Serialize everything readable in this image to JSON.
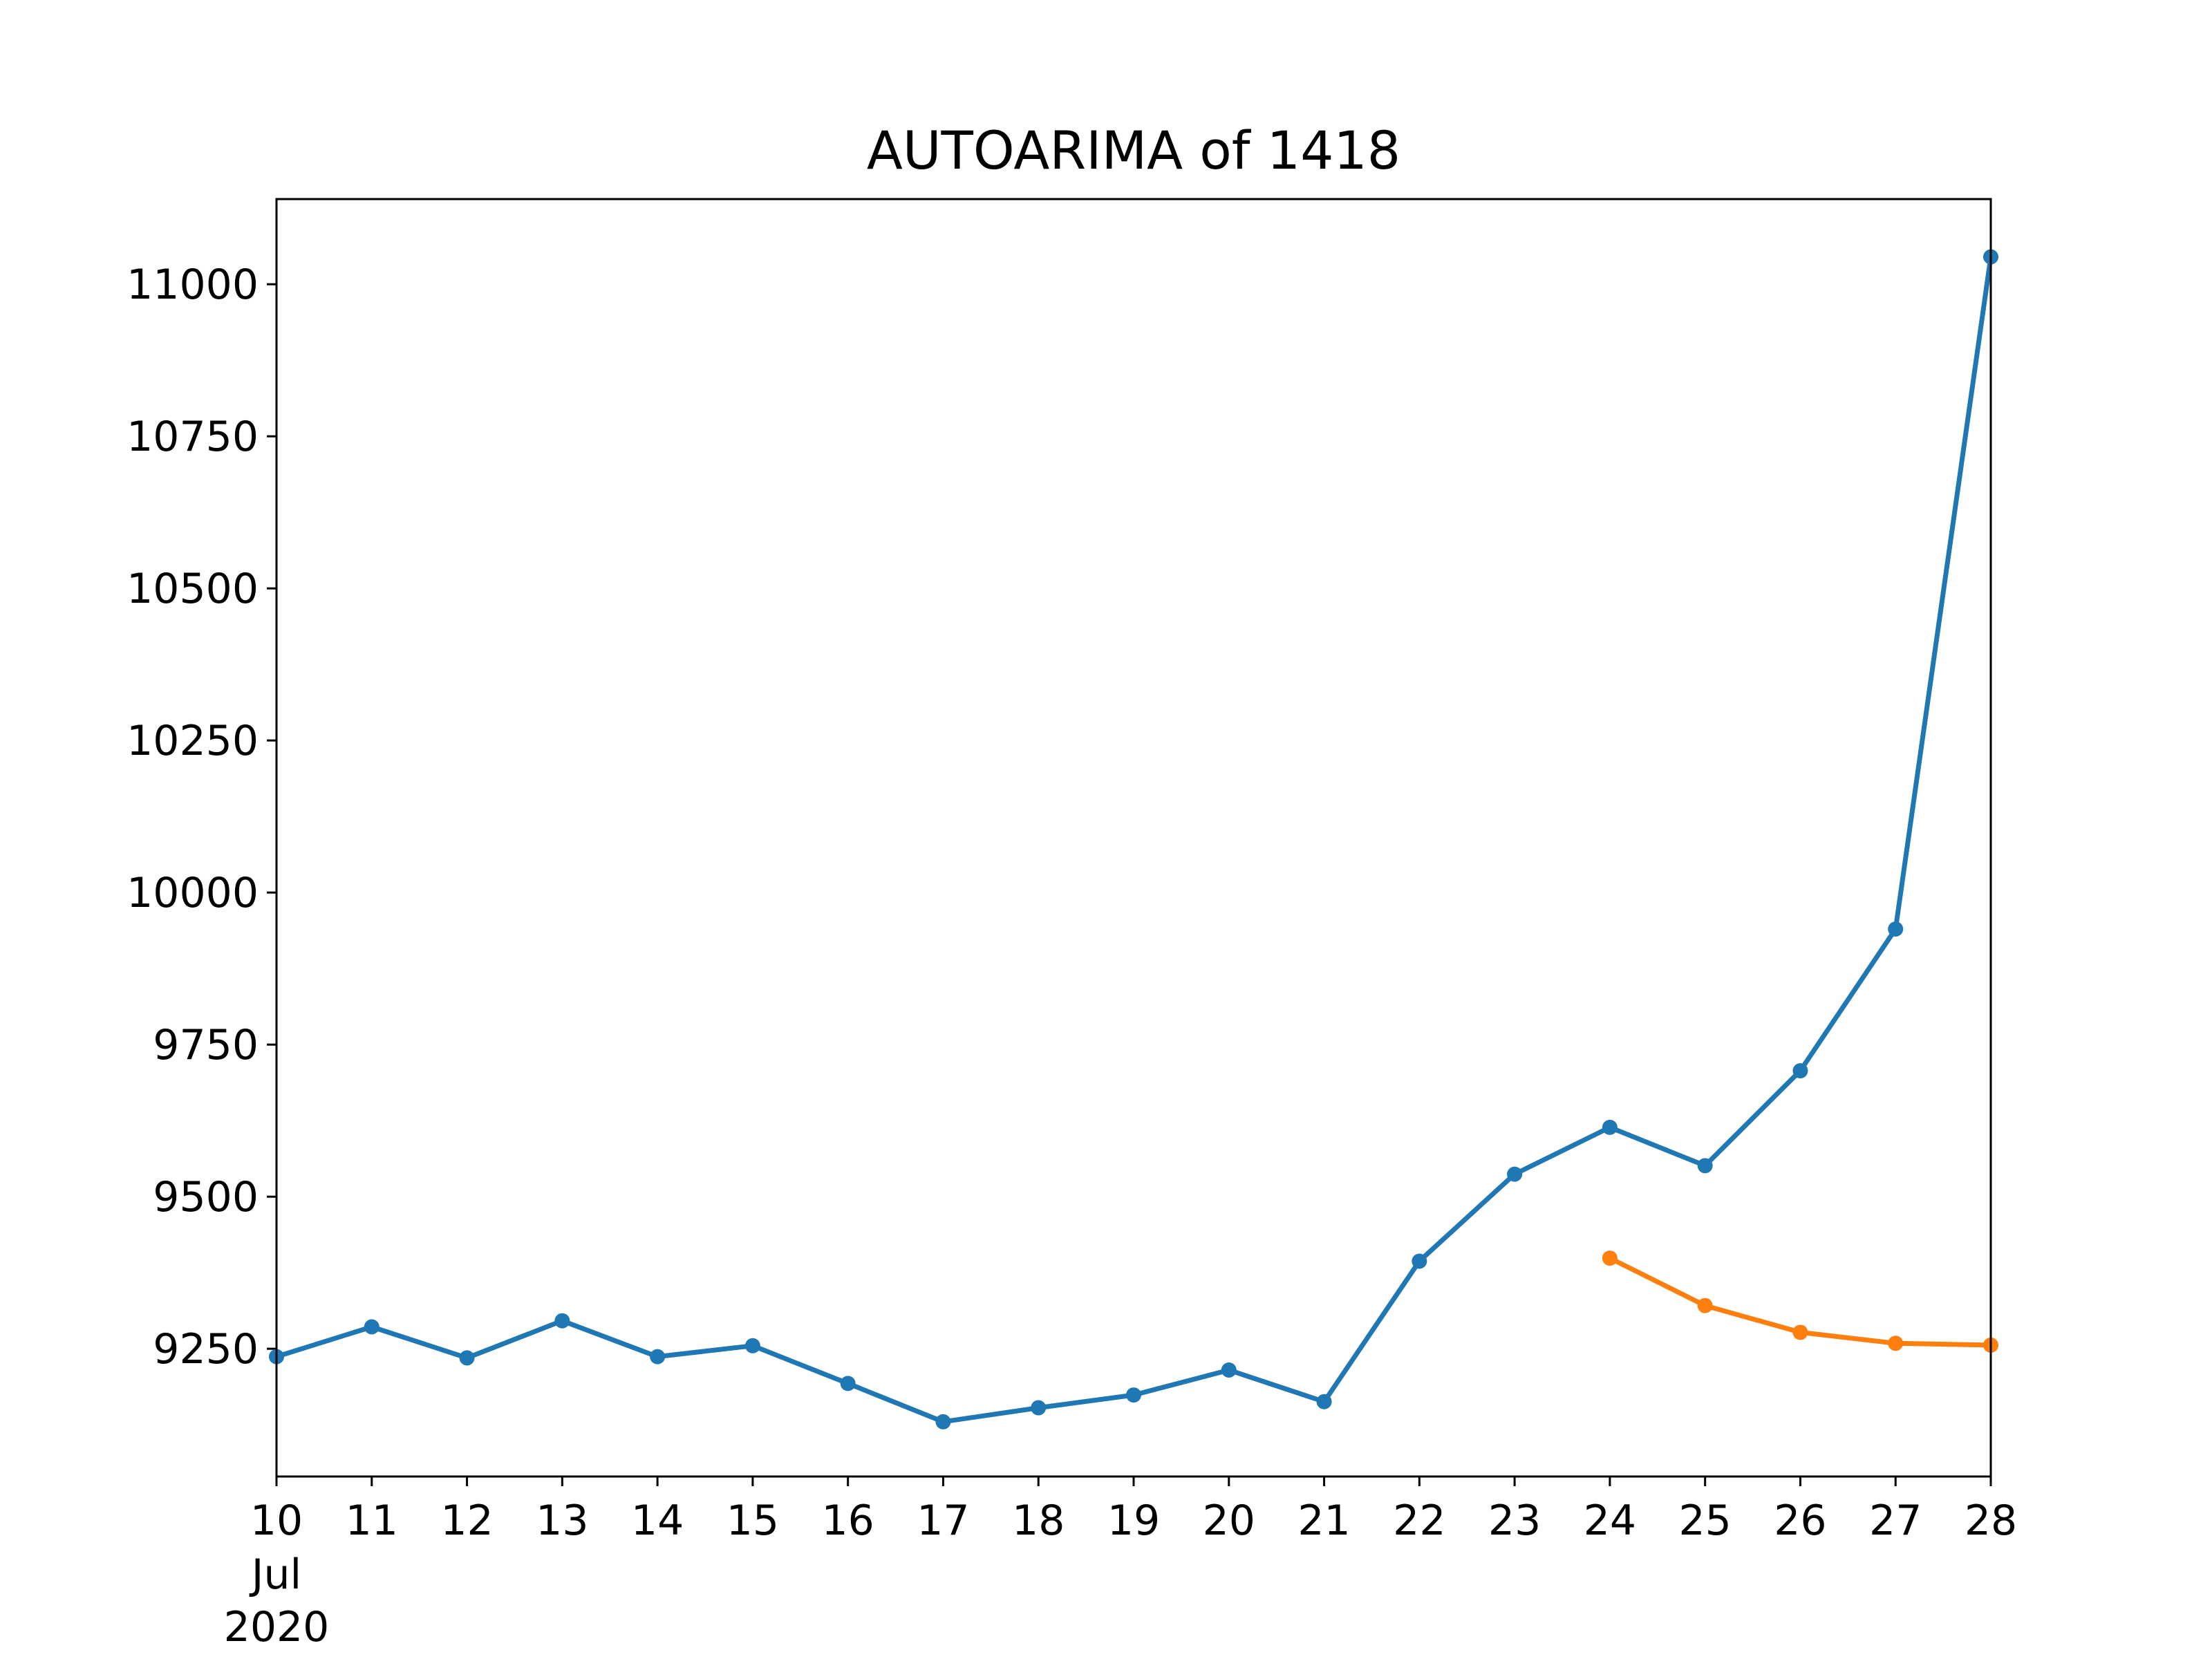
{
  "chart_data": {
    "type": "line",
    "title": "AUTOARIMA of 1418",
    "xlabel": "",
    "ylabel": "",
    "x": [
      "2020-07-10",
      "2020-07-11",
      "2020-07-12",
      "2020-07-13",
      "2020-07-14",
      "2020-07-15",
      "2020-07-16",
      "2020-07-17",
      "2020-07-18",
      "2020-07-19",
      "2020-07-20",
      "2020-07-21",
      "2020-07-22",
      "2020-07-23",
      "2020-07-24",
      "2020-07-25",
      "2020-07-26",
      "2020-07-27",
      "2020-07-28"
    ],
    "x_tick_labels": [
      "10",
      "11",
      "12",
      "13",
      "14",
      "15",
      "16",
      "17",
      "18",
      "19",
      "20",
      "21",
      "22",
      "23",
      "24",
      "25",
      "26",
      "27",
      "28"
    ],
    "x_tick_sublabels": [
      "Jul",
      "2020"
    ],
    "ylim": [
      9040,
      11140
    ],
    "y_ticks": [
      9250,
      9500,
      9750,
      10000,
      10250,
      10500,
      10750,
      11000
    ],
    "grid": false,
    "legend": "none",
    "series": [
      {
        "color": "#1f77b4",
        "x": [
          "2020-07-10",
          "2020-07-11",
          "2020-07-12",
          "2020-07-13",
          "2020-07-14",
          "2020-07-15",
          "2020-07-16",
          "2020-07-17",
          "2020-07-18",
          "2020-07-19",
          "2020-07-20",
          "2020-07-21",
          "2020-07-22",
          "2020-07-23",
          "2020-07-24",
          "2020-07-25",
          "2020-07-26",
          "2020-07-27",
          "2020-07-28"
        ],
        "values": [
          9237,
          9286,
          9235,
          9296,
          9237,
          9255,
          9193,
          9130,
          9153,
          9174,
          9215,
          9163,
          9394,
          9537,
          9614,
          9551,
          9707,
          9940,
          11045
        ]
      },
      {
        "color": "#ff7f0e",
        "x": [
          "2020-07-24",
          "2020-07-25",
          "2020-07-26",
          "2020-07-27",
          "2020-07-28"
        ],
        "values": [
          9399,
          9321,
          9277,
          9259,
          9256
        ]
      }
    ]
  }
}
